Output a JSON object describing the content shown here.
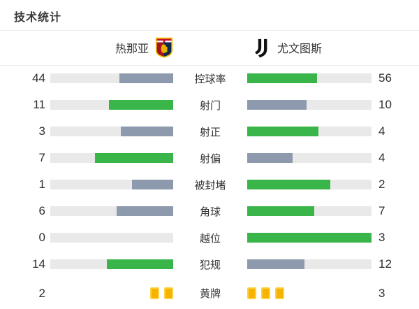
{
  "title": "技术统计",
  "teams": {
    "home": {
      "name": "热那亚"
    },
    "away": {
      "name": "尤文图斯"
    }
  },
  "colors": {
    "leading_fill": "#3ab54a",
    "trailing_fill": "#8d9aae",
    "track": "#e9e9e9",
    "card_fill": "#f6b400",
    "card_border": "#ffd044",
    "divider": "#ededed",
    "text": "#333333"
  },
  "stats": [
    {
      "key": "possession",
      "label": "控球率",
      "home": 44,
      "away": 56,
      "display": "bar"
    },
    {
      "key": "shots",
      "label": "射门",
      "home": 11,
      "away": 10,
      "display": "bar"
    },
    {
      "key": "shots-on-target",
      "label": "射正",
      "home": 3,
      "away": 4,
      "display": "bar"
    },
    {
      "key": "shots-off-target",
      "label": "射偏",
      "home": 7,
      "away": 4,
      "display": "bar"
    },
    {
      "key": "blocked",
      "label": "被封堵",
      "home": 1,
      "away": 2,
      "display": "bar"
    },
    {
      "key": "corners",
      "label": "角球",
      "home": 6,
      "away": 7,
      "display": "bar"
    },
    {
      "key": "offsides",
      "label": "越位",
      "home": 0,
      "away": 3,
      "display": "bar"
    },
    {
      "key": "fouls",
      "label": "犯规",
      "home": 14,
      "away": 12,
      "display": "bar"
    },
    {
      "key": "yellow-cards",
      "label": "黄牌",
      "home": 2,
      "away": 3,
      "display": "cards"
    }
  ],
  "chart_data": {
    "type": "bar",
    "title": "技术统计",
    "categories": [
      "控球率",
      "射门",
      "射正",
      "射偏",
      "被封堵",
      "角球",
      "越位",
      "犯规",
      "黄牌"
    ],
    "series": [
      {
        "name": "热那亚",
        "values": [
          44,
          11,
          3,
          7,
          1,
          6,
          0,
          14,
          2
        ]
      },
      {
        "name": "尤文图斯",
        "values": [
          56,
          10,
          4,
          4,
          2,
          7,
          3,
          12,
          3
        ]
      }
    ],
    "layout": "mirrored horizontal bar pairs; fill ratio = value/(home+away); higher value shown green (#3ab54a), lower gray (#8d9aae); last category rendered as yellow card icons instead of bars",
    "legend_position": "top",
    "grid": false
  }
}
